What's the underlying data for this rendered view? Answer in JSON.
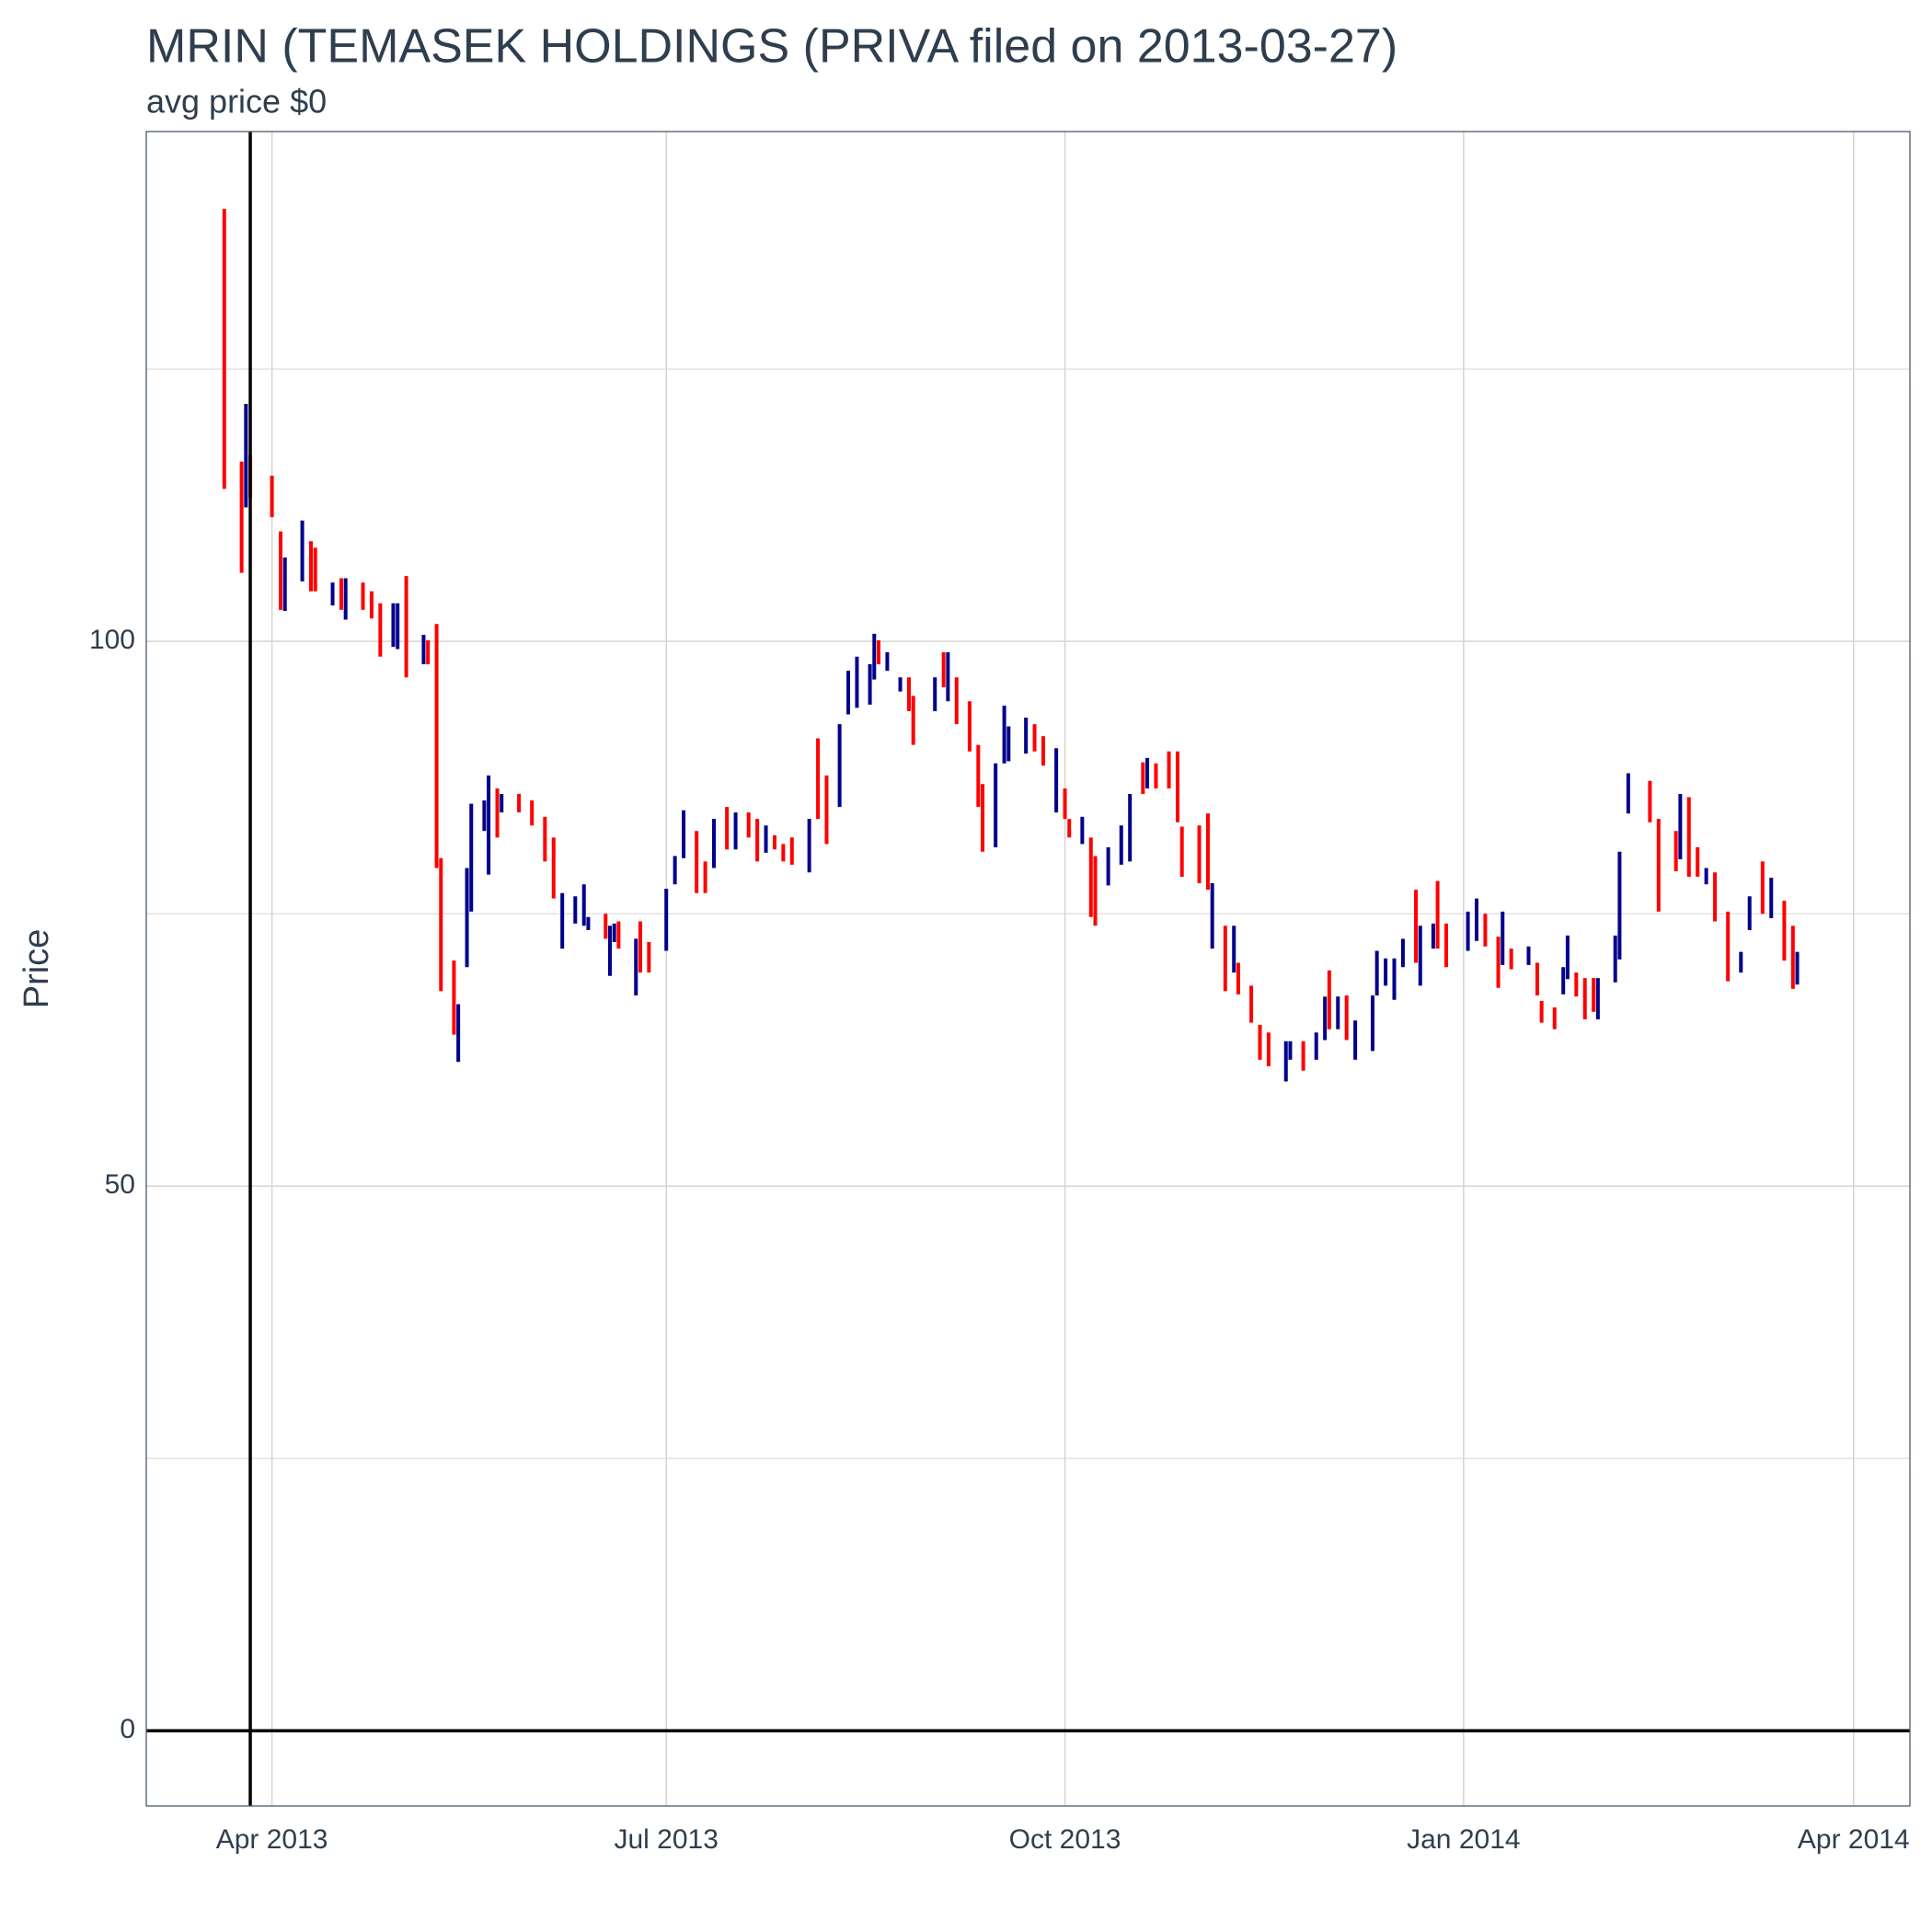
{
  "chart_data": {
    "type": "range-bar",
    "title": "MRIN (TEMASEK HOLDINGS (PRIVA filed on 2013-03-27)",
    "subtitle": "avg price $0",
    "y_label": "Price",
    "ylim": [
      -6.9,
      146.8
    ],
    "yticks": [
      0,
      50,
      100
    ],
    "y_minor_grid": [
      25,
      75,
      125
    ],
    "xlim": [
      "2013-03-03",
      "2014-04-14"
    ],
    "xticks": [
      {
        "value": "2013-04-01",
        "label": "Apr 2013"
      },
      {
        "value": "2013-07-01",
        "label": "Jul 2013"
      },
      {
        "value": "2013-10-01",
        "label": "Oct 2013"
      },
      {
        "value": "2014-01-01",
        "label": "Jan 2014"
      },
      {
        "value": "2014-04-01",
        "label": "Apr 2014"
      }
    ],
    "grid": true,
    "vline": "2013-03-27",
    "hline": 0,
    "series": [
      {
        "color": "#ff0000",
        "x": [
          "2013-03-21",
          "2013-03-25",
          "2013-03-27",
          "2013-04-01",
          "2013-04-03",
          "2013-04-10",
          "2013-04-11",
          "2013-04-17",
          "2013-04-22",
          "2013-04-24",
          "2013-04-26",
          "2013-05-02",
          "2013-05-07",
          "2013-05-09",
          "2013-05-10",
          "2013-05-13",
          "2013-05-23",
          "2013-05-28",
          "2013-05-31",
          "2013-06-03",
          "2013-06-05",
          "2013-06-17",
          "2013-06-20",
          "2013-06-25",
          "2013-06-27",
          "2013-07-08",
          "2013-07-10",
          "2013-07-15",
          "2013-07-20",
          "2013-07-22",
          "2013-07-26",
          "2013-07-28",
          "2013-07-30",
          "2013-08-05",
          "2013-08-07",
          "2013-08-19",
          "2013-08-26",
          "2013-08-27",
          "2013-09-03",
          "2013-09-06",
          "2013-09-09",
          "2013-09-11",
          "2013-09-12",
          "2013-09-24",
          "2013-09-26",
          "2013-10-01",
          "2013-10-02",
          "2013-10-07",
          "2013-10-08",
          "2013-10-19",
          "2013-10-22",
          "2013-10-25",
          "2013-10-27",
          "2013-10-28",
          "2013-11-01",
          "2013-11-03",
          "2013-11-07",
          "2013-11-10",
          "2013-11-13",
          "2013-11-15",
          "2013-11-17",
          "2013-11-25",
          "2013-12-01",
          "2013-12-05",
          "2013-12-21",
          "2013-12-26",
          "2013-12-28",
          "2014-01-06",
          "2014-01-09",
          "2014-01-12",
          "2014-01-18",
          "2014-01-19",
          "2014-01-22",
          "2014-01-27",
          "2014-01-29",
          "2014-01-31",
          "2014-02-13",
          "2014-02-15",
          "2014-02-19",
          "2014-02-22",
          "2014-02-24",
          "2014-02-28",
          "2014-03-03",
          "2014-03-11",
          "2014-03-16",
          "2014-03-18"
        ],
        "low": [
          114.0,
          106.3,
          113.2,
          111.4,
          102.9,
          104.6,
          104.6,
          102.9,
          102.9,
          102.1,
          98.6,
          96.7,
          97.9,
          79.2,
          67.9,
          63.9,
          82.0,
          84.3,
          83.1,
          79.8,
          76.4,
          72.7,
          71.8,
          69.6,
          69.6,
          76.9,
          76.9,
          80.9,
          82.0,
          79.8,
          80.9,
          79.8,
          79.5,
          83.7,
          81.4,
          97.9,
          93.6,
          90.5,
          95.8,
          92.4,
          89.9,
          84.8,
          80.7,
          89.9,
          88.6,
          83.7,
          82.0,
          74.7,
          73.9,
          86.0,
          86.5,
          86.5,
          83.4,
          78.4,
          77.8,
          77.2,
          67.9,
          67.6,
          65.0,
          61.6,
          61.0,
          60.6,
          64.4,
          63.4,
          70.5,
          71.8,
          70.1,
          72.0,
          68.2,
          69.9,
          67.5,
          65.0,
          64.4,
          67.4,
          65.3,
          66.0,
          83.4,
          75.2,
          78.9,
          78.4,
          78.4,
          74.3,
          68.8,
          75.0,
          70.7,
          68.1
        ],
        "high": [
          139.7,
          116.5,
          117.1,
          115.2,
          110.1,
          109.2,
          108.6,
          105.8,
          105.4,
          104.6,
          103.5,
          106.0,
          100.1,
          101.6,
          80.1,
          70.7,
          86.5,
          86.0,
          85.4,
          83.9,
          82.0,
          75.0,
          74.3,
          74.3,
          72.4,
          82.6,
          79.8,
          84.8,
          84.3,
          83.7,
          82.2,
          81.4,
          82.0,
          91.1,
          87.7,
          100.1,
          96.7,
          95.0,
          99.0,
          96.7,
          94.5,
          90.5,
          86.9,
          92.4,
          91.3,
          86.5,
          83.7,
          82.0,
          80.3,
          88.9,
          88.8,
          89.9,
          89.9,
          83.0,
          83.1,
          84.2,
          73.9,
          70.5,
          68.4,
          64.8,
          64.1,
          63.3,
          69.8,
          67.5,
          77.2,
          78.0,
          74.1,
          75.0,
          72.9,
          71.8,
          70.5,
          67.0,
          66.4,
          69.6,
          69.1,
          69.1,
          87.2,
          83.7,
          82.6,
          85.7,
          81.1,
          78.8,
          75.2,
          79.8,
          76.2,
          73.9
        ]
      },
      {
        "color": "#00008b",
        "x": [
          "2013-03-26",
          "2013-04-04",
          "2013-04-08",
          "2013-04-15",
          "2013-04-18",
          "2013-04-29",
          "2013-04-30",
          "2013-05-06",
          "2013-05-14",
          "2013-05-16",
          "2013-05-17",
          "2013-05-20",
          "2013-05-21",
          "2013-05-24",
          "2013-06-07",
          "2013-06-10",
          "2013-06-12",
          "2013-06-13",
          "2013-06-18",
          "2013-06-19",
          "2013-06-24",
          "2013-07-01",
          "2013-07-03",
          "2013-07-05",
          "2013-07-12",
          "2013-07-17",
          "2013-07-24",
          "2013-08-03",
          "2013-08-10",
          "2013-08-12",
          "2013-08-14",
          "2013-08-17",
          "2013-08-18",
          "2013-08-21",
          "2013-08-24",
          "2013-09-01",
          "2013-09-04",
          "2013-09-15",
          "2013-09-17",
          "2013-09-18",
          "2013-09-22",
          "2013-09-29",
          "2013-10-05",
          "2013-10-11",
          "2013-10-14",
          "2013-10-16",
          "2013-10-20",
          "2013-11-04",
          "2013-11-09",
          "2013-11-21",
          "2013-11-22",
          "2013-11-28",
          "2013-11-30",
          "2013-12-03",
          "2013-12-07",
          "2013-12-11",
          "2013-12-12",
          "2013-12-14",
          "2013-12-16",
          "2013-12-18",
          "2013-12-22",
          "2013-12-25",
          "2014-01-02",
          "2014-01-04",
          "2014-01-10",
          "2014-01-16",
          "2014-01-24",
          "2014-01-25",
          "2014-02-01",
          "2014-02-05",
          "2014-02-06",
          "2014-02-08",
          "2014-02-20",
          "2014-02-26",
          "2014-03-06",
          "2014-03-08",
          "2014-03-13",
          "2014-03-19"
        ],
        "low": [
          112.3,
          102.8,
          105.5,
          103.3,
          102.0,
          99.5,
          99.3,
          97.9,
          61.4,
          70.1,
          75.2,
          82.6,
          78.6,
          84.3,
          71.8,
          74.1,
          73.9,
          73.5,
          69.3,
          72.4,
          67.5,
          71.6,
          77.7,
          80.1,
          79.2,
          80.9,
          80.6,
          78.8,
          84.8,
          93.3,
          93.9,
          94.2,
          96.5,
          97.3,
          95.4,
          93.6,
          94.5,
          81.1,
          88.8,
          89.0,
          89.7,
          84.3,
          81.4,
          77.6,
          79.5,
          79.8,
          86.5,
          71.8,
          69.6,
          59.6,
          61.6,
          61.6,
          63.4,
          64.4,
          61.6,
          62.4,
          67.5,
          68.4,
          67.1,
          70.1,
          68.4,
          71.8,
          71.6,
          72.5,
          70.3,
          70.3,
          67.6,
          69.0,
          65.3,
          68.7,
          70.8,
          84.2,
          80.0,
          77.7,
          69.6,
          73.5,
          74.6,
          68.5
        ],
        "high": [
          121.8,
          107.7,
          111.1,
          105.4,
          105.8,
          103.5,
          103.5,
          100.6,
          66.7,
          79.2,
          85.1,
          85.4,
          87.7,
          86.0,
          76.9,
          76.6,
          77.7,
          74.7,
          73.9,
          74.1,
          72.7,
          77.3,
          80.3,
          84.5,
          83.7,
          84.3,
          83.1,
          83.7,
          92.4,
          97.3,
          98.6,
          97.9,
          100.7,
          99.0,
          96.7,
          96.7,
          99.0,
          88.8,
          94.1,
          92.2,
          93.0,
          90.2,
          83.9,
          81.1,
          83.1,
          86.0,
          89.3,
          77.8,
          73.9,
          63.3,
          63.3,
          64.1,
          67.4,
          67.4,
          65.2,
          67.5,
          71.6,
          70.9,
          70.9,
          72.7,
          73.9,
          74.1,
          75.2,
          76.4,
          75.2,
          72.0,
          70.1,
          73.0,
          69.1,
          73.0,
          80.7,
          87.9,
          86.0,
          79.2,
          71.5,
          76.6,
          78.3,
          71.5
        ]
      }
    ]
  }
}
